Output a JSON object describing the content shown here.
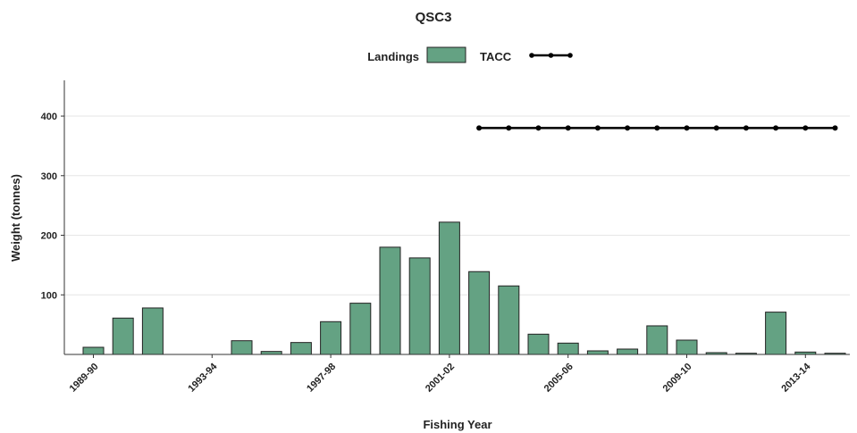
{
  "chart_data": {
    "type": "bar",
    "title": "QSC3",
    "xlabel": "Fishing Year",
    "ylabel": "Weight (tonnes)",
    "ylim": [
      0,
      460
    ],
    "yticks": [
      100,
      200,
      300,
      400
    ],
    "grid": true,
    "legend_position": "top-center",
    "categories": [
      "1989-90",
      "1990-91",
      "1991-92",
      "1992-93",
      "1993-94",
      "1994-95",
      "1995-96",
      "1996-97",
      "1997-98",
      "1998-99",
      "1999-00",
      "2000-01",
      "2001-02",
      "2002-03",
      "2003-04",
      "2004-05",
      "2005-06",
      "2006-07",
      "2007-08",
      "2008-09",
      "2009-10",
      "2010-11",
      "2011-12",
      "2012-13",
      "2013-14",
      "2014-15"
    ],
    "x_tick_labels": [
      "1989-90",
      "1993-94",
      "1997-98",
      "2001-02",
      "2005-06",
      "2009-10",
      "2013-14"
    ],
    "series": [
      {
        "name": "Landings",
        "kind": "bar",
        "color": "#64a283",
        "values": [
          12,
          61,
          78,
          0,
          0,
          23,
          5,
          20,
          55,
          86,
          180,
          162,
          222,
          139,
          115,
          34,
          19,
          6,
          9,
          48,
          24,
          3,
          2,
          71,
          4,
          2
        ]
      },
      {
        "name": "TACC",
        "kind": "line",
        "color": "#000000",
        "values": [
          null,
          null,
          null,
          null,
          null,
          null,
          null,
          null,
          null,
          null,
          null,
          null,
          null,
          380,
          380,
          380,
          380,
          380,
          380,
          380,
          380,
          380,
          380,
          380,
          380,
          380
        ]
      }
    ]
  }
}
